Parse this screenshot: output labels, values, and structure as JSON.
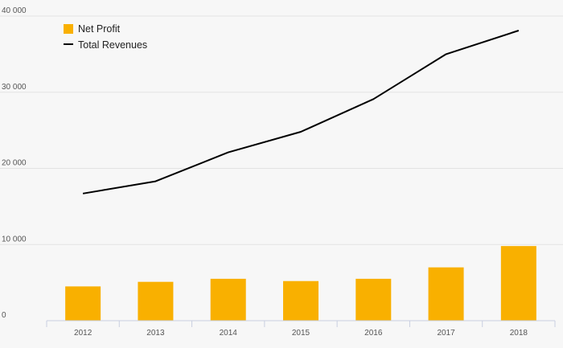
{
  "chart_data": {
    "type": "bar",
    "categories": [
      "2012",
      "2013",
      "2014",
      "2015",
      "2016",
      "2017",
      "2018"
    ],
    "series": [
      {
        "name": "Net Profit",
        "type": "bar",
        "color": "#f9b000",
        "values": [
          4500,
          5100,
          5500,
          5200,
          5500,
          7000,
          9800
        ]
      },
      {
        "name": "Total Revenues",
        "type": "line",
        "color": "#000000",
        "values": [
          16700,
          18300,
          22100,
          24800,
          29100,
          35000,
          38100
        ]
      }
    ],
    "y_ticks": [
      "0",
      "10 000",
      "20 000",
      "30 000",
      "40 000"
    ],
    "y_tick_values": [
      0,
      10000,
      20000,
      30000,
      40000
    ],
    "ylim": [
      0,
      40000
    ],
    "grid": true,
    "legend_position": "top-left"
  }
}
